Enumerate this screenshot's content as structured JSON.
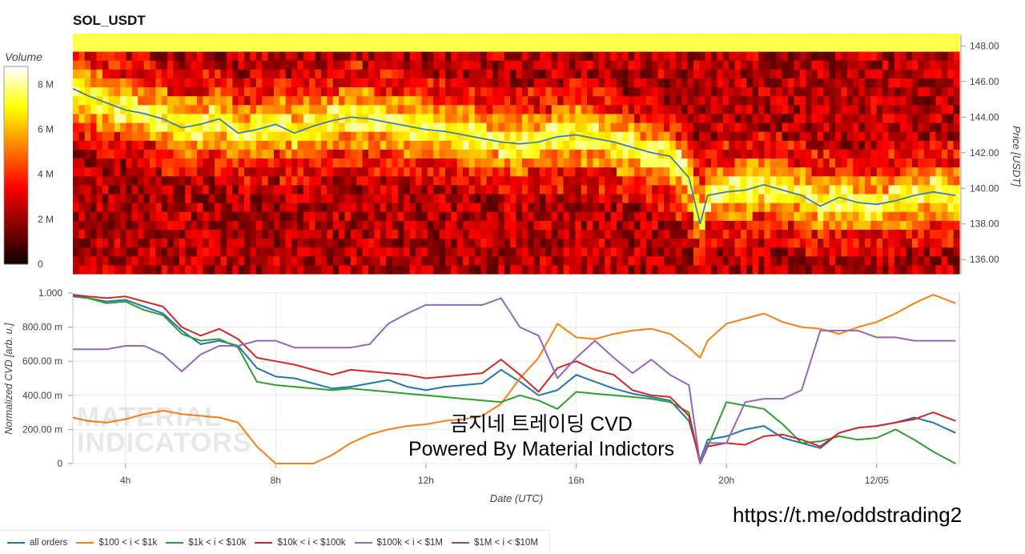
{
  "title": "SOL_USDT",
  "colorbar": {
    "label": "Volume",
    "ticks": [
      "8 M",
      "6 M",
      "4 M",
      "2 M",
      "0"
    ]
  },
  "heatmap": {
    "ylabel": "Price [USDT]",
    "price_ticks": [
      "148.00",
      "146.00",
      "144.00",
      "142.00",
      "140.00",
      "138.00",
      "136.00"
    ]
  },
  "cvd": {
    "ylabel": "Normalized CVD [arb. u.]",
    "xlabel": "Date (UTC)",
    "y_ticks": [
      "1.000",
      "800.00 m",
      "600.00 m",
      "400.00 m",
      "200.00 m",
      "0"
    ],
    "x_ticks": [
      "4h",
      "8h",
      "12h",
      "16h",
      "20h",
      "12/05"
    ]
  },
  "watermark": {
    "line1": "MATERIAL",
    "line2": "INDICATORS"
  },
  "overlay": {
    "line1": "곰지네 트레이딩 CVD",
    "line2": "Powered By Material Indictors"
  },
  "link": "https://t.me/oddstrading2",
  "legend": [
    {
      "label": "all orders",
      "color": "#1f77b4"
    },
    {
      "label": "$100 < i < $1k",
      "color": "#ff7f0e"
    },
    {
      "label": "$1k < i < $10k",
      "color": "#2ca02c"
    },
    {
      "label": "$10k < i < $100k",
      "color": "#d62728"
    },
    {
      "label": "$100k < i < $1M",
      "color": "#9467bd"
    },
    {
      "label": "$1M < i < $10M",
      "color": "#8c564b"
    }
  ],
  "chart_data": [
    {
      "type": "heatmap",
      "title": "SOL_USDT",
      "ylabel": "Price [USDT]",
      "ylim": [
        135.2,
        148.6
      ],
      "colorbar": {
        "label": "Volume",
        "range": [
          0,
          8800000
        ]
      },
      "price_series": {
        "name": "price",
        "x": [
          2.6,
          3.0,
          3.5,
          4.0,
          4.5,
          5.0,
          5.5,
          6.0,
          6.5,
          7.0,
          7.5,
          8.0,
          8.5,
          9.0,
          9.5,
          10.0,
          10.5,
          11.0,
          11.5,
          12.0,
          12.5,
          13.0,
          13.5,
          14.0,
          14.5,
          15.0,
          15.5,
          16.0,
          16.5,
          17.0,
          17.5,
          18.0,
          18.5,
          19.0,
          19.3,
          19.5,
          20.0,
          20.5,
          21.0,
          21.5,
          22.0,
          22.5,
          23.0,
          23.5,
          24.0,
          24.5,
          25.0,
          25.5,
          26.1
        ],
        "y": [
          145.6,
          145.2,
          144.8,
          144.4,
          144.2,
          143.9,
          143.4,
          143.6,
          143.9,
          143.1,
          143.3,
          143.6,
          143.1,
          143.5,
          143.8,
          144.0,
          143.9,
          143.7,
          143.5,
          143.3,
          143.2,
          143.0,
          142.8,
          142.6,
          142.5,
          142.6,
          142.9,
          143.0,
          142.8,
          142.6,
          142.3,
          142.0,
          141.8,
          140.6,
          138.0,
          139.6,
          139.8,
          139.9,
          140.2,
          139.9,
          139.6,
          139.0,
          139.5,
          139.2,
          139.1,
          139.3,
          139.6,
          139.8,
          139.6
        ]
      }
    },
    {
      "type": "line",
      "xlabel": "Date (UTC)",
      "ylabel": "Normalized CVD [arb. u.]",
      "xlim": [
        2.6,
        26.2
      ],
      "ylim": [
        0,
        1
      ],
      "x": [
        2.6,
        3.0,
        3.5,
        4.0,
        4.5,
        5.0,
        5.5,
        6.0,
        6.5,
        7.0,
        7.5,
        8.0,
        8.5,
        9.0,
        9.5,
        10.0,
        10.5,
        11.0,
        11.5,
        12.0,
        12.5,
        13.0,
        13.5,
        14.0,
        14.5,
        15.0,
        15.5,
        16.0,
        16.5,
        17.0,
        17.5,
        18.0,
        18.5,
        19.0,
        19.3,
        19.5,
        20.0,
        20.5,
        21.0,
        21.5,
        22.0,
        22.5,
        23.0,
        23.5,
        24.0,
        24.5,
        25.0,
        25.5,
        26.1
      ],
      "series": [
        {
          "name": "all orders",
          "values": [
            0.98,
            0.97,
            0.95,
            0.96,
            0.92,
            0.88,
            0.78,
            0.7,
            0.72,
            0.69,
            0.56,
            0.51,
            0.5,
            0.47,
            0.44,
            0.45,
            0.47,
            0.49,
            0.45,
            0.43,
            0.45,
            0.46,
            0.47,
            0.55,
            0.48,
            0.4,
            0.43,
            0.52,
            0.48,
            0.44,
            0.41,
            0.39,
            0.37,
            0.25,
            0.02,
            0.14,
            0.16,
            0.2,
            0.22,
            0.15,
            0.12,
            0.09,
            0.18,
            0.21,
            0.22,
            0.24,
            0.27,
            0.24,
            0.18
          ]
        },
        {
          "name": "$100 < i < $1k",
          "values": [
            0.27,
            0.25,
            0.24,
            0.26,
            0.29,
            0.31,
            0.29,
            0.28,
            0.27,
            0.24,
            0.1,
            0.0,
            0.0,
            0.0,
            0.05,
            0.12,
            0.17,
            0.2,
            0.22,
            0.23,
            0.25,
            0.26,
            0.28,
            0.35,
            0.5,
            0.62,
            0.82,
            0.74,
            0.73,
            0.76,
            0.78,
            0.79,
            0.76,
            0.68,
            0.62,
            0.72,
            0.82,
            0.85,
            0.88,
            0.83,
            0.8,
            0.79,
            0.76,
            0.8,
            0.83,
            0.88,
            0.94,
            0.99,
            0.94
          ]
        },
        {
          "name": "$1k < i < $10k",
          "values": [
            0.99,
            0.97,
            0.94,
            0.95,
            0.9,
            0.87,
            0.76,
            0.72,
            0.73,
            0.68,
            0.48,
            0.46,
            0.45,
            0.44,
            0.43,
            0.44,
            0.43,
            0.42,
            0.41,
            0.4,
            0.39,
            0.38,
            0.37,
            0.36,
            0.4,
            0.37,
            0.32,
            0.42,
            0.41,
            0.4,
            0.39,
            0.38,
            0.36,
            0.3,
            0.0,
            0.1,
            0.36,
            0.34,
            0.32,
            0.23,
            0.12,
            0.13,
            0.16,
            0.14,
            0.15,
            0.2,
            0.14,
            0.07,
            0.0
          ]
        },
        {
          "name": "$10k < i < $100k",
          "values": [
            0.99,
            0.98,
            0.97,
            0.98,
            0.95,
            0.92,
            0.8,
            0.75,
            0.79,
            0.73,
            0.62,
            0.6,
            0.58,
            0.55,
            0.52,
            0.55,
            0.54,
            0.53,
            0.52,
            0.5,
            0.51,
            0.52,
            0.53,
            0.61,
            0.52,
            0.42,
            0.56,
            0.6,
            0.55,
            0.52,
            0.43,
            0.4,
            0.39,
            0.28,
            0.0,
            0.1,
            0.12,
            0.11,
            0.16,
            0.17,
            0.14,
            0.1,
            0.18,
            0.21,
            0.22,
            0.24,
            0.26,
            0.3,
            0.25
          ]
        },
        {
          "name": "$100k < i < $1M",
          "values": [
            0.67,
            0.67,
            0.67,
            0.69,
            0.69,
            0.64,
            0.54,
            0.64,
            0.69,
            0.69,
            0.72,
            0.72,
            0.68,
            0.68,
            0.68,
            0.68,
            0.7,
            0.82,
            0.88,
            0.93,
            0.93,
            0.93,
            0.93,
            0.97,
            0.8,
            0.75,
            0.5,
            0.62,
            0.72,
            0.62,
            0.53,
            0.61,
            0.52,
            0.46,
            0.0,
            0.12,
            0.12,
            0.36,
            0.38,
            0.38,
            0.43,
            0.78,
            0.78,
            0.78,
            0.74,
            0.74,
            0.72,
            0.72,
            0.72
          ]
        }
      ]
    }
  ]
}
